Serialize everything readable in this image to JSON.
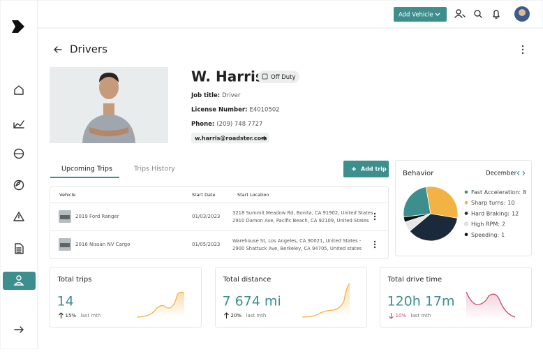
{
  "nav": {
    "add_vehicle": "Add Vehicle"
  },
  "page": {
    "title": "Drivers"
  },
  "driver": {
    "name": "W. Harris",
    "status": "Off Duty",
    "fields": [
      {
        "label": "Job title:",
        "value": "Driver"
      },
      {
        "label": "License Number:",
        "value": "E4010502"
      },
      {
        "label": "Phone:",
        "value": "(209) 748 7727"
      }
    ],
    "email": "w.harris@roadster.com"
  },
  "tabs": [
    "Upcoming Trips",
    "Trips History"
  ],
  "add_trip": "Add trip",
  "table": {
    "columns": [
      "Vehicle",
      "Start Date",
      "Start Location"
    ],
    "rows": [
      {
        "vehicle": "2019 Ford Ranger",
        "start_date": "01/03/2023",
        "start_location": [
          "3218 Summit Meadow Rd, Bonita, CA 91902, United States",
          "2910 Damon Ave, Pacific Beach, CA 92109, United States"
        ]
      },
      {
        "vehicle": "2016 Nissan NV Cargo",
        "start_date": "01/05/2023",
        "start_location": [
          "Warehouse St, Los Angeles, CA 90021, United States -",
          "2900 Shattuck Ave, Berkeley, CA 94705, United states"
        ]
      }
    ]
  },
  "behavior": {
    "title": "Behavior",
    "month": "December",
    "items": [
      {
        "name": "Fast Acceleration:",
        "value": 8,
        "color": "#3d8f8e"
      },
      {
        "name": "Sharp turns:",
        "value": 10,
        "color": "#f3b244"
      },
      {
        "name": "Hard Braking:",
        "value": 12,
        "color": "#1b2a3a"
      },
      {
        "name": "High RPM:",
        "value": 2,
        "color": "#e6e6e6"
      },
      {
        "name": "Speeding:",
        "value": 1,
        "color": "#111111"
      }
    ]
  },
  "stats": [
    {
      "title": "Total trips",
      "value": "14",
      "change": "15%",
      "direction": "up",
      "period": "last mth"
    },
    {
      "title": "Total distance",
      "value": "7 674 mi",
      "change": "20%",
      "direction": "up",
      "period": "last mth"
    },
    {
      "title": "Total drive time",
      "value": "120h 17m",
      "change": "10%",
      "direction": "down",
      "period": "last mth"
    }
  ]
}
